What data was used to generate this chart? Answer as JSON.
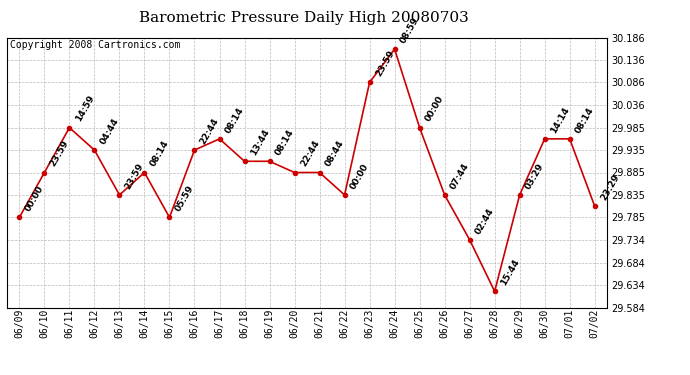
{
  "title": "Barometric Pressure Daily High 20080703",
  "copyright": "Copyright 2008 Cartronics.com",
  "x_labels": [
    "06/09",
    "06/10",
    "06/11",
    "06/12",
    "06/13",
    "06/14",
    "06/15",
    "06/16",
    "06/17",
    "06/18",
    "06/19",
    "06/20",
    "06/21",
    "06/22",
    "06/23",
    "06/24",
    "06/25",
    "06/26",
    "06/27",
    "06/28",
    "06/29",
    "06/30",
    "07/01",
    "07/02"
  ],
  "dates": [
    0,
    1,
    2,
    3,
    4,
    5,
    6,
    7,
    8,
    9,
    10,
    11,
    12,
    13,
    14,
    15,
    16,
    17,
    18,
    19,
    20,
    21,
    22,
    23
  ],
  "values": [
    29.785,
    29.885,
    29.985,
    29.935,
    29.835,
    29.885,
    29.785,
    29.935,
    29.96,
    29.91,
    29.91,
    29.885,
    29.885,
    29.835,
    30.086,
    30.16,
    29.985,
    29.835,
    29.735,
    29.62,
    29.835,
    29.96,
    29.96,
    29.81
  ],
  "times": [
    "00:00",
    "23:59",
    "14:59",
    "04:44",
    "23:59",
    "08:14",
    "05:59",
    "22:44",
    "08:14",
    "13:44",
    "08:14",
    "22:44",
    "08:44",
    "00:00",
    "23:59",
    "08:59",
    "00:00",
    "07:44",
    "02:44",
    "15:44",
    "03:29",
    "14:14",
    "08:14",
    "23:29"
  ],
  "ylim_min": 29.584,
  "ylim_max": 30.186,
  "yticks": [
    29.584,
    29.634,
    29.684,
    29.734,
    29.785,
    29.835,
    29.885,
    29.935,
    29.985,
    30.036,
    30.086,
    30.136,
    30.186
  ],
  "line_color": "#cc0000",
  "marker_color": "#cc0000",
  "bg_color": "#ffffff",
  "plot_bg_color": "#ffffff",
  "grid_color": "#bbbbbb",
  "title_fontsize": 11,
  "copyright_fontsize": 7,
  "tick_fontsize": 7,
  "label_fontsize": 6.5
}
